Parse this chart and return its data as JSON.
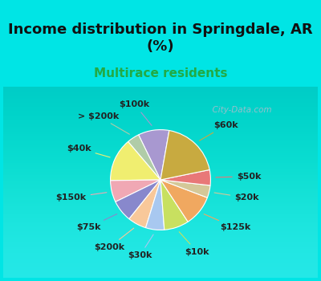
{
  "title": "Income distribution in Springdale, AR\n(%)",
  "subtitle": "Multirace residents",
  "labels": [
    "$100k",
    "> $200k",
    "$40k",
    "$150k",
    "$75k",
    "$200k",
    "$30k",
    "$10k",
    "$125k",
    "$20k",
    "$50k",
    "$60k"
  ],
  "sizes": [
    10,
    4,
    14,
    7,
    7,
    6,
    6,
    8,
    10,
    4,
    5,
    19
  ],
  "colors": [
    "#a898d0",
    "#b0cca8",
    "#f0ee70",
    "#f0a8b4",
    "#8888cc",
    "#f8c89a",
    "#a8c8f0",
    "#c8e060",
    "#f0a860",
    "#d4c898",
    "#e87878",
    "#c8aa40"
  ],
  "background_color": "#00e5e5",
  "chart_bg_color": "#ddf0e4",
  "title_fontsize": 13,
  "subtitle_fontsize": 11,
  "subtitle_color": "#22aa44",
  "label_fontsize": 8,
  "startangle": 80,
  "watermark": "  City-Data.com"
}
